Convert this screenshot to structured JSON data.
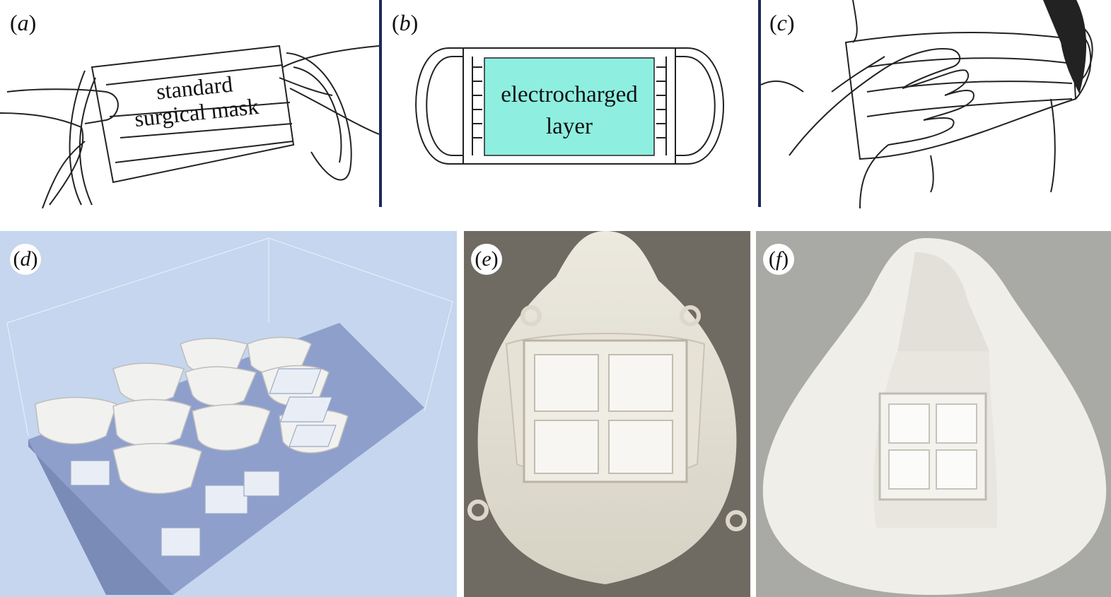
{
  "panels": {
    "a": {
      "letter": "a",
      "text_line1": "standard",
      "text_line2": "surgical mask"
    },
    "b": {
      "letter": "b",
      "text_line1": "electrocharged",
      "text_line2": "layer",
      "layer_color": "#8eefe0"
    },
    "c": {
      "letter": "c"
    },
    "d": {
      "letter": "d",
      "bg_color": "#c5d6ee",
      "plate_color": "#8e9fcc"
    },
    "e": {
      "letter": "e",
      "bg_color": "#6f6b62"
    },
    "f": {
      "letter": "f",
      "bg_color": "#a9a9a5"
    }
  },
  "separator_color": "#1c2a5a"
}
